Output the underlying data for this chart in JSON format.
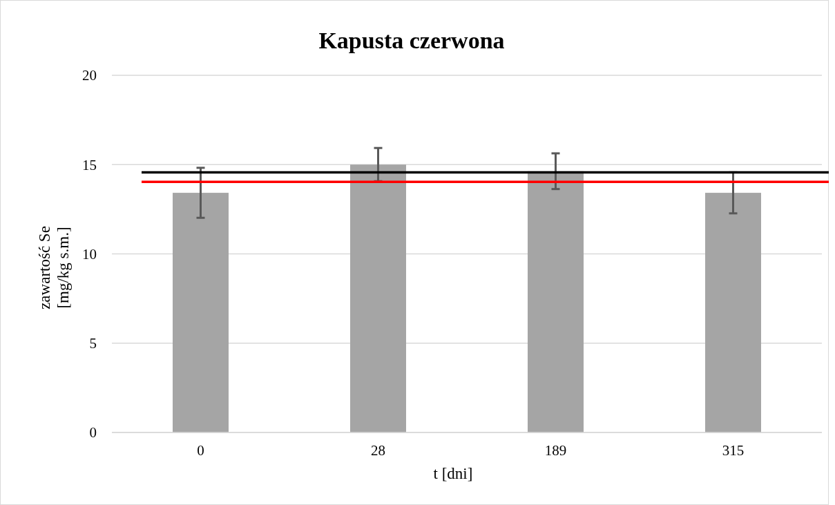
{
  "chart_data": {
    "type": "bar",
    "title": "Kapusta czerwona",
    "xlabel": "t [dni]",
    "ylabel": "zawartość Se\n[mg/kg s.m.]",
    "categories": [
      "0",
      "28",
      "189",
      "315"
    ],
    "values": [
      13.42,
      15.0,
      14.63,
      13.42
    ],
    "errors": [
      1.4,
      0.93,
      1.0,
      1.15
    ],
    "color": "#a5a5a5",
    "ylim": [
      0,
      20
    ],
    "yticks": [
      0,
      5,
      10,
      15,
      20
    ],
    "grid": "y",
    "ref_lines": [
      {
        "axis": "y",
        "value": 14.56,
        "color": "#000000"
      },
      {
        "axis": "y",
        "value": 14.03,
        "color": "#ff0000"
      }
    ]
  }
}
